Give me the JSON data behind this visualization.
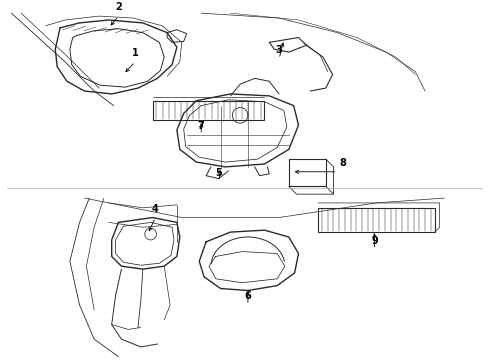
{
  "bg_color": "#ffffff",
  "lc": "#2a2a2a",
  "lw": 0.7,
  "label_fs": 7,
  "fig_w": 4.9,
  "fig_h": 3.6,
  "dpi": 100
}
